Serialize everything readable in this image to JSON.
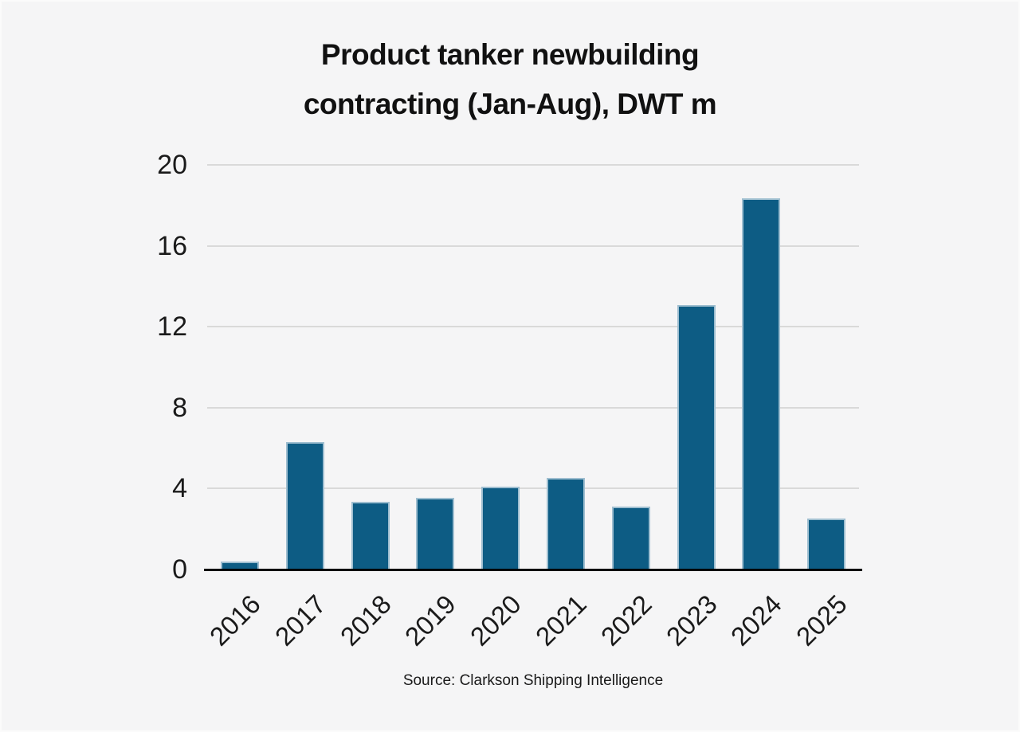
{
  "page": {
    "background_color": "#f5f5f6",
    "text_color": "#1a1a1a"
  },
  "chart_data": {
    "type": "bar",
    "title": "Product tanker newbuilding contracting (Jan-Aug), DWT m",
    "title_line1": "Product tanker newbuilding",
    "title_line2": "contracting (Jan-Aug), DWT m",
    "categories": [
      "2016",
      "2017",
      "2018",
      "2019",
      "2020",
      "2021",
      "2022",
      "2023",
      "2024",
      "2025"
    ],
    "values": [
      0.45,
      6.35,
      3.4,
      3.6,
      4.15,
      4.55,
      3.15,
      13.1,
      18.4,
      2.55
    ],
    "xlabel": "",
    "ylabel": "",
    "y_ticks": [
      0,
      4,
      8,
      12,
      16,
      20
    ],
    "ylim": [
      0,
      20
    ],
    "grid": true,
    "legend": "none",
    "bar_color": "#0d5c84",
    "bar_border_color": "#9ebed0",
    "gridline_color": "#d9d9d9",
    "axis_line_color": "#000000",
    "source": "Source: Clarkson Shipping Intelligence"
  }
}
